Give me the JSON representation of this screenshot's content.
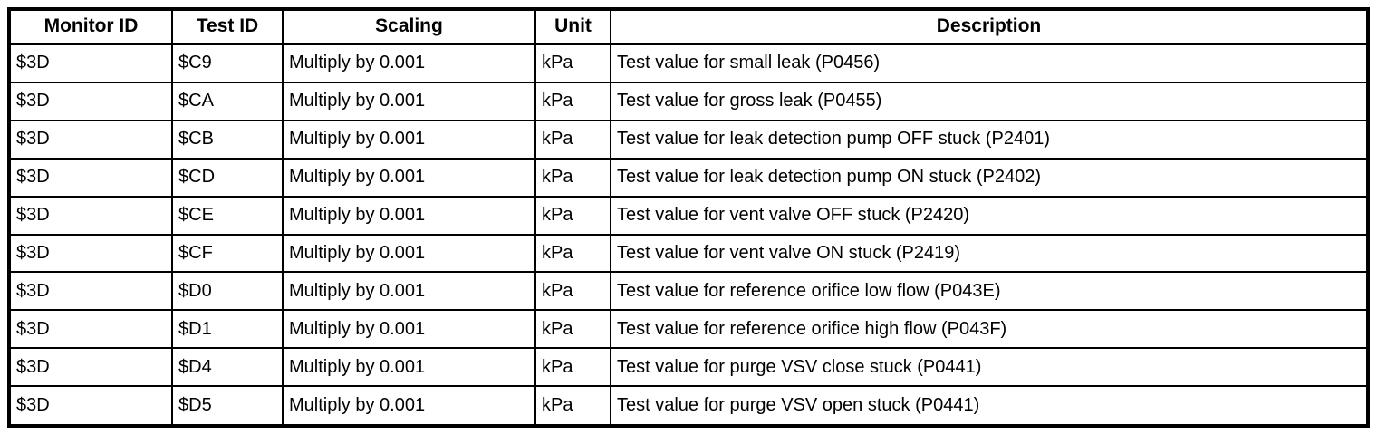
{
  "colors": {
    "background": "#ffffff",
    "border": "#000000",
    "text": "#000000"
  },
  "table": {
    "columns": [
      {
        "key": "monitor-id",
        "label": "Monitor ID"
      },
      {
        "key": "test-id",
        "label": "Test ID"
      },
      {
        "key": "scaling",
        "label": "Scaling"
      },
      {
        "key": "unit",
        "label": "Unit"
      },
      {
        "key": "description",
        "label": "Description"
      }
    ],
    "rows": [
      [
        "$3D",
        "$C9",
        "Multiply by 0.001",
        "kPa",
        "Test value for small leak (P0456)"
      ],
      [
        "$3D",
        "$CA",
        "Multiply by 0.001",
        "kPa",
        "Test value for gross leak (P0455)"
      ],
      [
        "$3D",
        "$CB",
        "Multiply by 0.001",
        "kPa",
        "Test value for leak detection pump OFF stuck (P2401)"
      ],
      [
        "$3D",
        "$CD",
        "Multiply by 0.001",
        "kPa",
        "Test value for leak detection pump ON stuck (P2402)"
      ],
      [
        "$3D",
        "$CE",
        "Multiply by 0.001",
        "kPa",
        "Test value for vent valve OFF stuck (P2420)"
      ],
      [
        "$3D",
        "$CF",
        "Multiply by 0.001",
        "kPa",
        "Test value for vent valve ON stuck (P2419)"
      ],
      [
        "$3D",
        "$D0",
        "Multiply by 0.001",
        "kPa",
        "Test value for reference orifice low flow (P043E)"
      ],
      [
        "$3D",
        "$D1",
        "Multiply by 0.001",
        "kPa",
        "Test value for reference orifice high flow (P043F)"
      ],
      [
        "$3D",
        "$D4",
        "Multiply by 0.001",
        "kPa",
        "Test value for purge VSV close stuck (P0441)"
      ],
      [
        "$3D",
        "$D5",
        "Multiply by 0.001",
        "kPa",
        "Test value for purge VSV open stuck (P0441)"
      ]
    ]
  }
}
